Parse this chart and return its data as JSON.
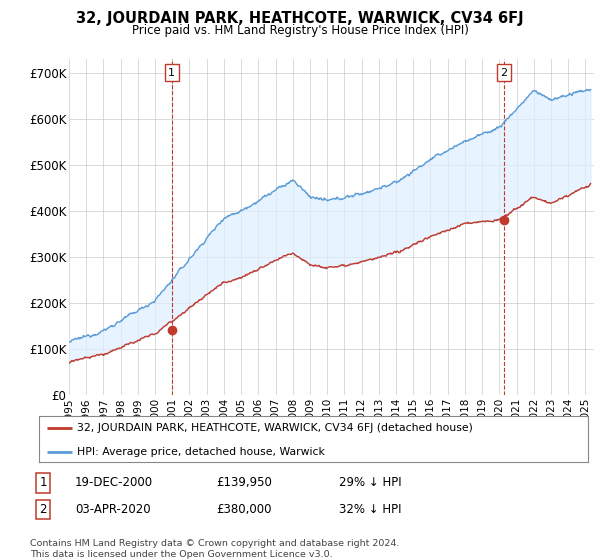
{
  "title": "32, JOURDAIN PARK, HEATHCOTE, WARWICK, CV34 6FJ",
  "subtitle": "Price paid vs. HM Land Registry's House Price Index (HPI)",
  "ylabel_ticks": [
    "£0",
    "£100K",
    "£200K",
    "£300K",
    "£400K",
    "£500K",
    "£600K",
    "£700K"
  ],
  "ytick_values": [
    0,
    100000,
    200000,
    300000,
    400000,
    500000,
    600000,
    700000
  ],
  "ylim": [
    0,
    730000
  ],
  "xlim_start": 1995.0,
  "xlim_end": 2025.5,
  "point1_x": 2000.97,
  "point1_y": 139950,
  "point2_x": 2020.25,
  "point2_y": 380000,
  "annotation1_date": "19-DEC-2000",
  "annotation1_price": "£139,950",
  "annotation1_hpi": "29% ↓ HPI",
  "annotation2_date": "03-APR-2020",
  "annotation2_price": "£380,000",
  "annotation2_hpi": "32% ↓ HPI",
  "legend_line1": "32, JOURDAIN PARK, HEATHCOTE, WARWICK, CV34 6FJ (detached house)",
  "legend_line2": "HPI: Average price, detached house, Warwick",
  "footer": "Contains HM Land Registry data © Crown copyright and database right 2024.\nThis data is licensed under the Open Government Licence v3.0.",
  "hpi_color": "#5b9bd5",
  "fill_color": "#ddeeff",
  "price_paid_color": "#c0392b",
  "background_color": "#ffffff",
  "grid_color": "#cccccc"
}
